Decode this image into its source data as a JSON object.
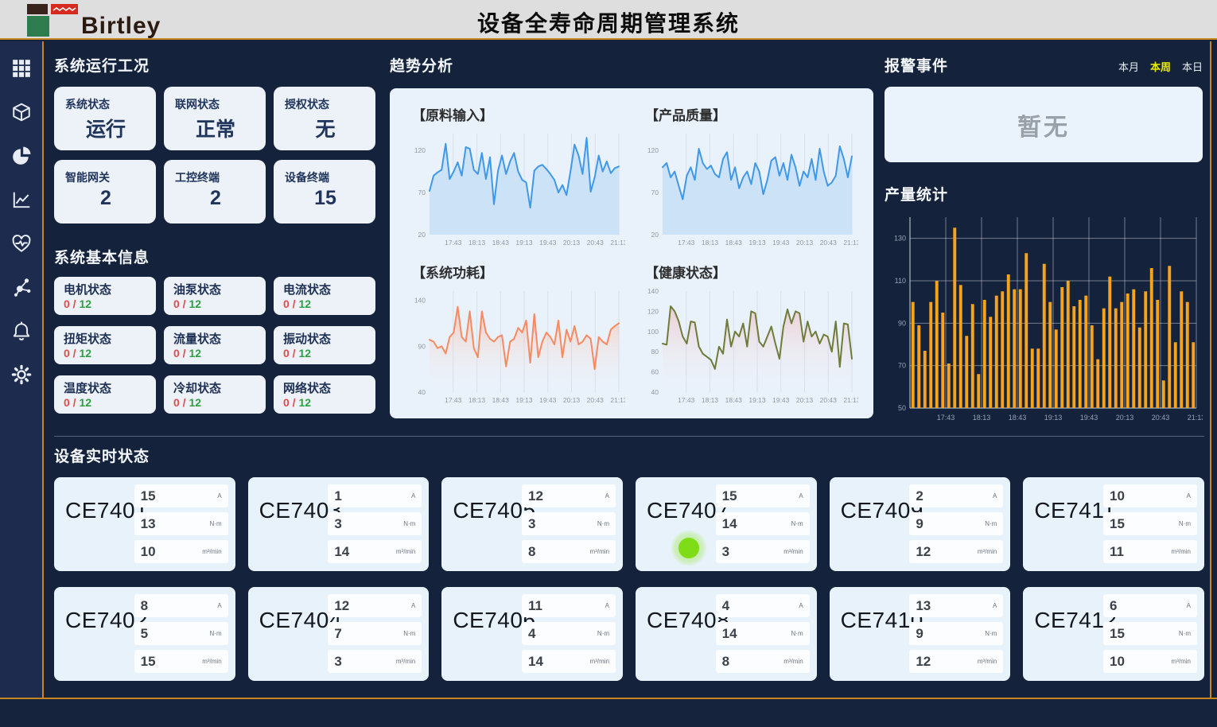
{
  "header": {
    "logo_text": "Birtley",
    "title": "设备全寿命周期管理系统"
  },
  "sidebar": {
    "icons": [
      "grid-icon",
      "cube-icon",
      "pie-chart-icon",
      "line-chart-icon",
      "heart-pulse-icon",
      "network-icon",
      "bell-icon",
      "gear-icon"
    ]
  },
  "panels": {
    "system_status": {
      "title": "系统运行工况",
      "cards": [
        {
          "label": "系统状态",
          "value": "运行"
        },
        {
          "label": "联网状态",
          "value": "正常"
        },
        {
          "label": "授权状态",
          "value": "无"
        },
        {
          "label": "智能网关",
          "value": "2"
        },
        {
          "label": "工控终端",
          "value": "2"
        },
        {
          "label": "设备终端",
          "value": "15"
        }
      ]
    },
    "system_info": {
      "title": "系统基本信息",
      "cards": [
        {
          "label": "电机状态",
          "current": "0",
          "separator": " / ",
          "total": "12"
        },
        {
          "label": "油泵状态",
          "current": "0",
          "separator": " / ",
          "total": "12"
        },
        {
          "label": "电流状态",
          "current": "0",
          "separator": " / ",
          "total": "12"
        },
        {
          "label": "扭矩状态",
          "current": "0",
          "separator": " / ",
          "total": "12"
        },
        {
          "label": "流量状态",
          "current": "0",
          "separator": " / ",
          "total": "12"
        },
        {
          "label": "振动状态",
          "current": "0",
          "separator": " / ",
          "total": "12"
        },
        {
          "label": "温度状态",
          "current": "0",
          "separator": " / ",
          "total": "12"
        },
        {
          "label": "冷却状态",
          "current": "0",
          "separator": " / ",
          "total": "12"
        },
        {
          "label": "网络状态",
          "current": "0",
          "separator": " / ",
          "total": "12"
        }
      ]
    },
    "trends": {
      "title": "趋势分析"
    },
    "alarms": {
      "title": "报警事件",
      "tabs": [
        {
          "label": "本月",
          "active": false
        },
        {
          "label": "本周",
          "active": true
        },
        {
          "label": "本日",
          "active": false
        }
      ],
      "empty_text": "暂无"
    },
    "production": {
      "title": "产量统计"
    },
    "devices": {
      "title": "设备实时状态",
      "units": [
        "A",
        "N·m",
        "m³/min"
      ],
      "items": [
        {
          "name": "CE7401",
          "values": [
            15,
            13,
            10
          ],
          "indicator": false
        },
        {
          "name": "CE7403",
          "values": [
            1,
            3,
            14
          ],
          "indicator": false
        },
        {
          "name": "CE7405",
          "values": [
            12,
            3,
            8
          ],
          "indicator": false
        },
        {
          "name": "CE7407",
          "values": [
            15,
            14,
            3
          ],
          "indicator": true
        },
        {
          "name": "CE7409",
          "values": [
            2,
            9,
            12
          ],
          "indicator": false
        },
        {
          "name": "CE7411",
          "values": [
            10,
            15,
            11
          ],
          "indicator": false
        },
        {
          "name": "CE7402",
          "values": [
            8,
            5,
            15
          ],
          "indicator": false
        },
        {
          "name": "CE7404",
          "values": [
            12,
            7,
            3
          ],
          "indicator": false
        },
        {
          "name": "CE7406",
          "values": [
            11,
            4,
            14
          ],
          "indicator": false
        },
        {
          "name": "CE7408",
          "values": [
            4,
            14,
            8
          ],
          "indicator": false
        },
        {
          "name": "CE7410",
          "values": [
            13,
            9,
            12
          ],
          "indicator": false
        },
        {
          "name": "CE7412",
          "values": [
            6,
            15,
            10
          ],
          "indicator": false
        }
      ]
    }
  },
  "chart_data": [
    {
      "id": "raw_input",
      "type": "line",
      "title": "【原料输入】",
      "x_labels": [
        "17:43",
        "18:13",
        "18:43",
        "19:13",
        "19:43",
        "20:13",
        "20:43",
        "21:13"
      ],
      "ylim": [
        20,
        140
      ],
      "yticks": [
        20,
        70,
        120
      ],
      "grid": true,
      "legend": "none",
      "color": "#4098e8",
      "fill": "#cbe2f7",
      "values": [
        72,
        90,
        94,
        97,
        128,
        86,
        95,
        106,
        90,
        124,
        122,
        97,
        92,
        117,
        86,
        112,
        56,
        96,
        114,
        92,
        107,
        117,
        95,
        85,
        82,
        52,
        96,
        101,
        103,
        98,
        92,
        85,
        70,
        79,
        67,
        95,
        127,
        114,
        92,
        135,
        71,
        88,
        114,
        95,
        107,
        93,
        99,
        101
      ]
    },
    {
      "id": "quality",
      "type": "line",
      "title": "【产品质量】",
      "x_labels": [
        "17:43",
        "18:13",
        "18:43",
        "19:13",
        "19:43",
        "20:13",
        "20:43",
        "21:13"
      ],
      "ylim": [
        20,
        140
      ],
      "yticks": [
        20,
        70,
        120
      ],
      "grid": true,
      "legend": "none",
      "color": "#4098e8",
      "fill": "#cbe2f7",
      "values": [
        100,
        105,
        88,
        95,
        78,
        62,
        90,
        100,
        85,
        122,
        105,
        98,
        102,
        92,
        88,
        110,
        118,
        85,
        100,
        75,
        88,
        95,
        80,
        105,
        95,
        68,
        85,
        108,
        112,
        90,
        105,
        85,
        115,
        100,
        78,
        95,
        88,
        110,
        85,
        122,
        95,
        78,
        82,
        90,
        125,
        110,
        88,
        113
      ]
    },
    {
      "id": "power",
      "type": "line",
      "title": "【系统功耗】",
      "x_labels": [
        "17:43",
        "18:13",
        "18:43",
        "19:13",
        "19:43",
        "20:13",
        "20:43",
        "21:13"
      ],
      "ylim": [
        40,
        150
      ],
      "yticks": [
        40,
        90,
        140
      ],
      "grid": true,
      "legend": "none",
      "color": "#f78a62",
      "fill_gradient": [
        "rgba(247,150,110,0.45)",
        "rgba(255,255,255,0)"
      ],
      "values": [
        97,
        95,
        88,
        90,
        82,
        100,
        105,
        133,
        100,
        95,
        128,
        88,
        78,
        128,
        105,
        98,
        95,
        100,
        102,
        68,
        95,
        98,
        110,
        105,
        118,
        72,
        125,
        78,
        95,
        105,
        100,
        92,
        118,
        78,
        108,
        95,
        112,
        92,
        95,
        102,
        98,
        65,
        100,
        95,
        92,
        108,
        112,
        115
      ]
    },
    {
      "id": "health",
      "type": "line",
      "title": "【健康状态】",
      "x_labels": [
        "17:43",
        "18:13",
        "18:43",
        "19:13",
        "19:43",
        "20:13",
        "20:43",
        "21:13"
      ],
      "ylim": [
        40,
        140
      ],
      "yticks": [
        40,
        60,
        80,
        100,
        120,
        140
      ],
      "grid": true,
      "legend": "none",
      "color": "#6f7b38",
      "fill_gradient": [
        "rgba(240,150,150,0.40)",
        "rgba(255,255,255,0)"
      ],
      "values": [
        88,
        87,
        125,
        120,
        110,
        95,
        88,
        110,
        109,
        85,
        78,
        75,
        72,
        63,
        85,
        78,
        112,
        85,
        100,
        95,
        108,
        85,
        120,
        118,
        90,
        85,
        95,
        105,
        88,
        73,
        105,
        122,
        108,
        120,
        118,
        90,
        110,
        95,
        100,
        88,
        97,
        95,
        80,
        110,
        65,
        108,
        107,
        73
      ]
    },
    {
      "id": "production",
      "type": "bar",
      "title": "产量统计",
      "x_labels": [
        "17:43",
        "18:13",
        "18:43",
        "19:13",
        "19:43",
        "20:13",
        "20:43",
        "21:13"
      ],
      "ylim": [
        50,
        140
      ],
      "yticks": [
        50,
        70,
        90,
        110,
        130
      ],
      "grid": true,
      "legend": "none",
      "color": "#f5a41c",
      "values": [
        100,
        89,
        77,
        100,
        110,
        95,
        71,
        135,
        108,
        84,
        99,
        66,
        101,
        93,
        103,
        105,
        113,
        106,
        106,
        123,
        78,
        78,
        118,
        100,
        87,
        107,
        110,
        98,
        101,
        103,
        89,
        73,
        97,
        112,
        97,
        100,
        104,
        106,
        88,
        105,
        116,
        101,
        63,
        117,
        81,
        105,
        100,
        81
      ]
    }
  ],
  "colors": {
    "accent_gold": "#c8861e",
    "background": "#15223c",
    "sidebar": "#1d2c4e",
    "card_light": "#edf1f8",
    "line_blue": "#4098e8",
    "line_orange": "#f78a62",
    "line_olive": "#6f7b38",
    "bar_orange": "#f5a41c",
    "tab_active_yellow": "#e8ea00",
    "count_red": "#e24c4c",
    "count_green": "#2f9e44",
    "indicator_green": "#7fdd17"
  }
}
